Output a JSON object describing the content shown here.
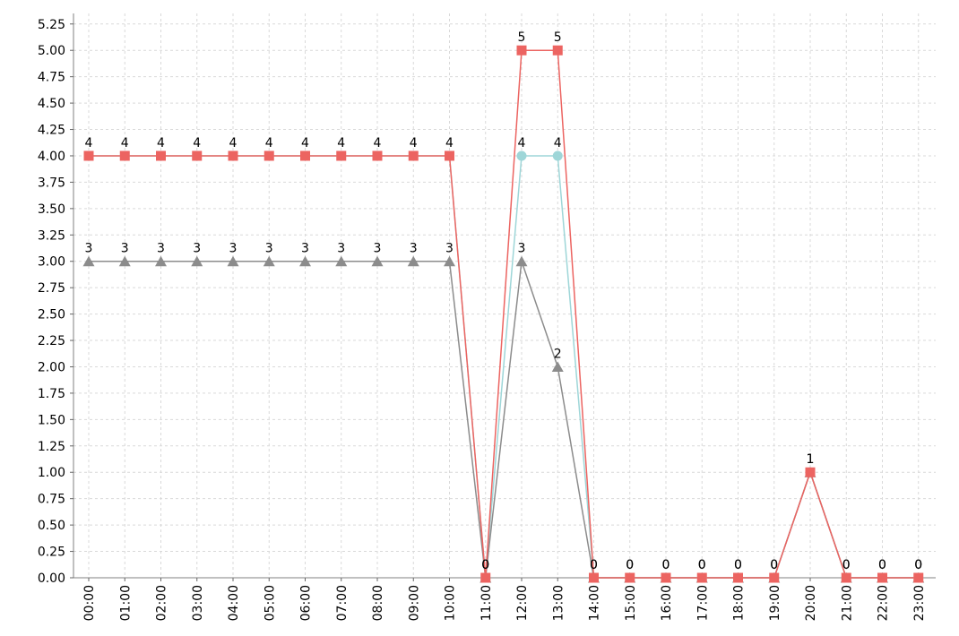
{
  "chart_data": {
    "type": "line",
    "title": "",
    "xlabel": "",
    "ylabel": "",
    "categories": [
      "00:00",
      "01:00",
      "02:00",
      "03:00",
      "04:00",
      "05:00",
      "06:00",
      "07:00",
      "08:00",
      "09:00",
      "10:00",
      "11:00",
      "12:00",
      "13:00",
      "14:00",
      "15:00",
      "16:00",
      "17:00",
      "18:00",
      "19:00",
      "20:00",
      "21:00",
      "22:00",
      "23:00"
    ],
    "ylim": [
      0,
      5.35
    ],
    "yticks": [
      "0.00",
      "0.25",
      "0.50",
      "0.75",
      "1.00",
      "1.25",
      "1.50",
      "1.75",
      "2.00",
      "2.25",
      "2.50",
      "2.75",
      "3.00",
      "3.25",
      "3.50",
      "3.75",
      "4.00",
      "4.25",
      "4.50",
      "4.75",
      "5.00",
      "5.25"
    ],
    "grid": true,
    "legend": "none",
    "series": [
      {
        "color": "#9ed6d8",
        "marker": "circle",
        "values": [
          4,
          4,
          4,
          4,
          4,
          4,
          4,
          4,
          4,
          4,
          4,
          0,
          4,
          4,
          0,
          0,
          0,
          0,
          0,
          0,
          1,
          0,
          0,
          0
        ]
      },
      {
        "color": "#8c8c8c",
        "marker": "triangle",
        "values": [
          3,
          3,
          3,
          3,
          3,
          3,
          3,
          3,
          3,
          3,
          3,
          0,
          3,
          2,
          0,
          0,
          0,
          0,
          0,
          0,
          1,
          0,
          0,
          0
        ],
        "labels": [
          "3",
          "3",
          "3",
          "3",
          "3",
          "3",
          "3",
          "3",
          "3",
          "3",
          "3",
          "0",
          "3",
          "2",
          "0",
          "0",
          "0",
          "0",
          "0",
          "0",
          "1",
          "0",
          "0",
          "0"
        ]
      },
      {
        "color": "#ec6461",
        "marker": "square",
        "values": [
          4,
          4,
          4,
          4,
          4,
          4,
          4,
          4,
          4,
          4,
          4,
          0,
          5,
          5,
          0,
          0,
          0,
          0,
          0,
          0,
          1,
          0,
          0,
          0
        ],
        "labels": [
          "4",
          "4",
          "4",
          "4",
          "4",
          "4",
          "4",
          "4",
          "4",
          "4",
          "4",
          "0",
          "5",
          "5",
          "0",
          "0",
          "0",
          "0",
          "0",
          "0",
          "1",
          "0",
          "0",
          "0"
        ]
      }
    ],
    "extra_labels": [
      {
        "x": "12:00",
        "y": 4,
        "text": "4"
      },
      {
        "x": "13:00",
        "y": 4,
        "text": "4"
      }
    ]
  }
}
